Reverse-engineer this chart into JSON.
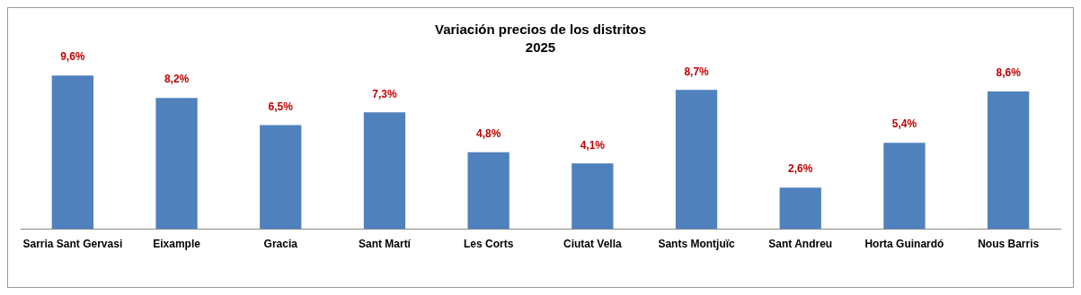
{
  "chart_data": {
    "type": "bar",
    "title": "Variación precios de los distritos",
    "subtitle": "2025",
    "categories": [
      "Sarria Sant Gervasi",
      "Eixample",
      "Gracia",
      "Sant Martí",
      "Les Corts",
      "Ciutat Vella",
      "Sants Montjuïc",
      "Sant Andreu",
      "Horta Guinardó",
      "Nous Barris"
    ],
    "values": [
      9.6,
      8.2,
      6.5,
      7.3,
      4.8,
      4.1,
      8.7,
      2.6,
      5.4,
      8.6
    ],
    "value_labels": [
      "9,6%",
      "8,2%",
      "6,5%",
      "7,3%",
      "4,8%",
      "4,1%",
      "8,7%",
      "2,6%",
      "5,4%",
      "8,6%"
    ],
    "color": "#4f81bd",
    "grid": false,
    "legend": false,
    "tick_labels": "x"
  }
}
